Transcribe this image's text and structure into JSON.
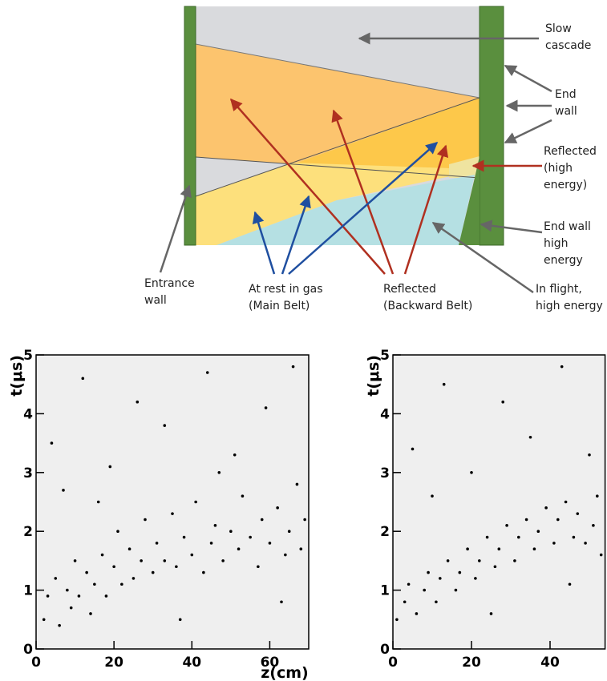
{
  "diagram": {
    "labels": [
      {
        "lines": [
          "Slow",
          "cascade"
        ]
      },
      {
        "lines": [
          "End",
          "wall"
        ]
      },
      {
        "lines": [
          "Reflected",
          "(high",
          "energy)"
        ]
      },
      {
        "lines": [
          "End wall",
          "high",
          "energy"
        ]
      },
      {
        "lines": [
          "In flight,",
          "high energy"
        ]
      },
      {
        "lines": [
          "Reflected",
          "(Backward Belt)"
        ]
      },
      {
        "lines": [
          "At rest in gas",
          "(Main Belt)"
        ]
      },
      {
        "lines": [
          "Entrance",
          "wall"
        ]
      }
    ]
  },
  "chart_data": [
    {
      "type": "scatter",
      "ylabel": "t(μs)",
      "xlabel": "z(cm)",
      "color": "#000000",
      "xlim": [
        0,
        70
      ],
      "ylim": [
        0,
        5
      ],
      "xticks": [
        0,
        20,
        40,
        60
      ],
      "yticks": [
        0,
        1,
        2,
        3,
        4,
        5
      ],
      "x": [
        2,
        3,
        5,
        6,
        8,
        9,
        10,
        11,
        13,
        14,
        15,
        17,
        18,
        20,
        21,
        22,
        24,
        25,
        27,
        28,
        30,
        31,
        33,
        35,
        36,
        38,
        40,
        41,
        43,
        45,
        46,
        48,
        50,
        52,
        53,
        55,
        57,
        58,
        60,
        62,
        64,
        65,
        67,
        68,
        69,
        4,
        12,
        19,
        26,
        33,
        44,
        51,
        59,
        66,
        7,
        37,
        63,
        16,
        47
      ],
      "y": [
        0.5,
        0.9,
        1.2,
        0.4,
        1.0,
        0.7,
        1.5,
        0.9,
        1.3,
        0.6,
        1.1,
        1.6,
        0.9,
        1.4,
        2.0,
        1.1,
        1.7,
        1.2,
        1.5,
        2.2,
        1.3,
        1.8,
        1.5,
        2.3,
        1.4,
        1.9,
        1.6,
        2.5,
        1.3,
        1.8,
        2.1,
        1.5,
        2.0,
        1.7,
        2.6,
        1.9,
        1.4,
        2.2,
        1.8,
        2.4,
        1.6,
        2.0,
        2.8,
        1.7,
        2.2,
        3.5,
        4.6,
        3.1,
        4.2,
        3.8,
        4.7,
        3.3,
        4.1,
        4.8,
        2.7,
        0.5,
        0.8,
        2.5,
        3.0
      ]
    },
    {
      "type": "scatter",
      "ylabel": "t(μs)",
      "color": "#000000",
      "xlim": [
        0,
        54
      ],
      "ylim": [
        0,
        5
      ],
      "xticks": [
        0,
        20,
        40
      ],
      "yticks": [
        0,
        1,
        2,
        3,
        4,
        5
      ],
      "x": [
        1,
        3,
        4,
        6,
        8,
        9,
        11,
        12,
        14,
        16,
        17,
        19,
        21,
        22,
        24,
        26,
        27,
        29,
        31,
        32,
        34,
        36,
        37,
        39,
        41,
        42,
        44,
        46,
        47,
        49,
        51,
        52,
        53,
        5,
        13,
        20,
        28,
        35,
        43,
        50,
        10,
        25,
        45
      ],
      "y": [
        0.5,
        0.8,
        1.1,
        0.6,
        1.0,
        1.3,
        0.8,
        1.2,
        1.5,
        1.0,
        1.3,
        1.7,
        1.2,
        1.5,
        1.9,
        1.4,
        1.7,
        2.1,
        1.5,
        1.9,
        2.2,
        1.7,
        2.0,
        2.4,
        1.8,
        2.2,
        2.5,
        1.9,
        2.3,
        1.8,
        2.1,
        2.6,
        1.6,
        3.4,
        4.5,
        3.0,
        4.2,
        3.6,
        4.8,
        3.3,
        2.6,
        0.6,
        1.1
      ]
    }
  ]
}
